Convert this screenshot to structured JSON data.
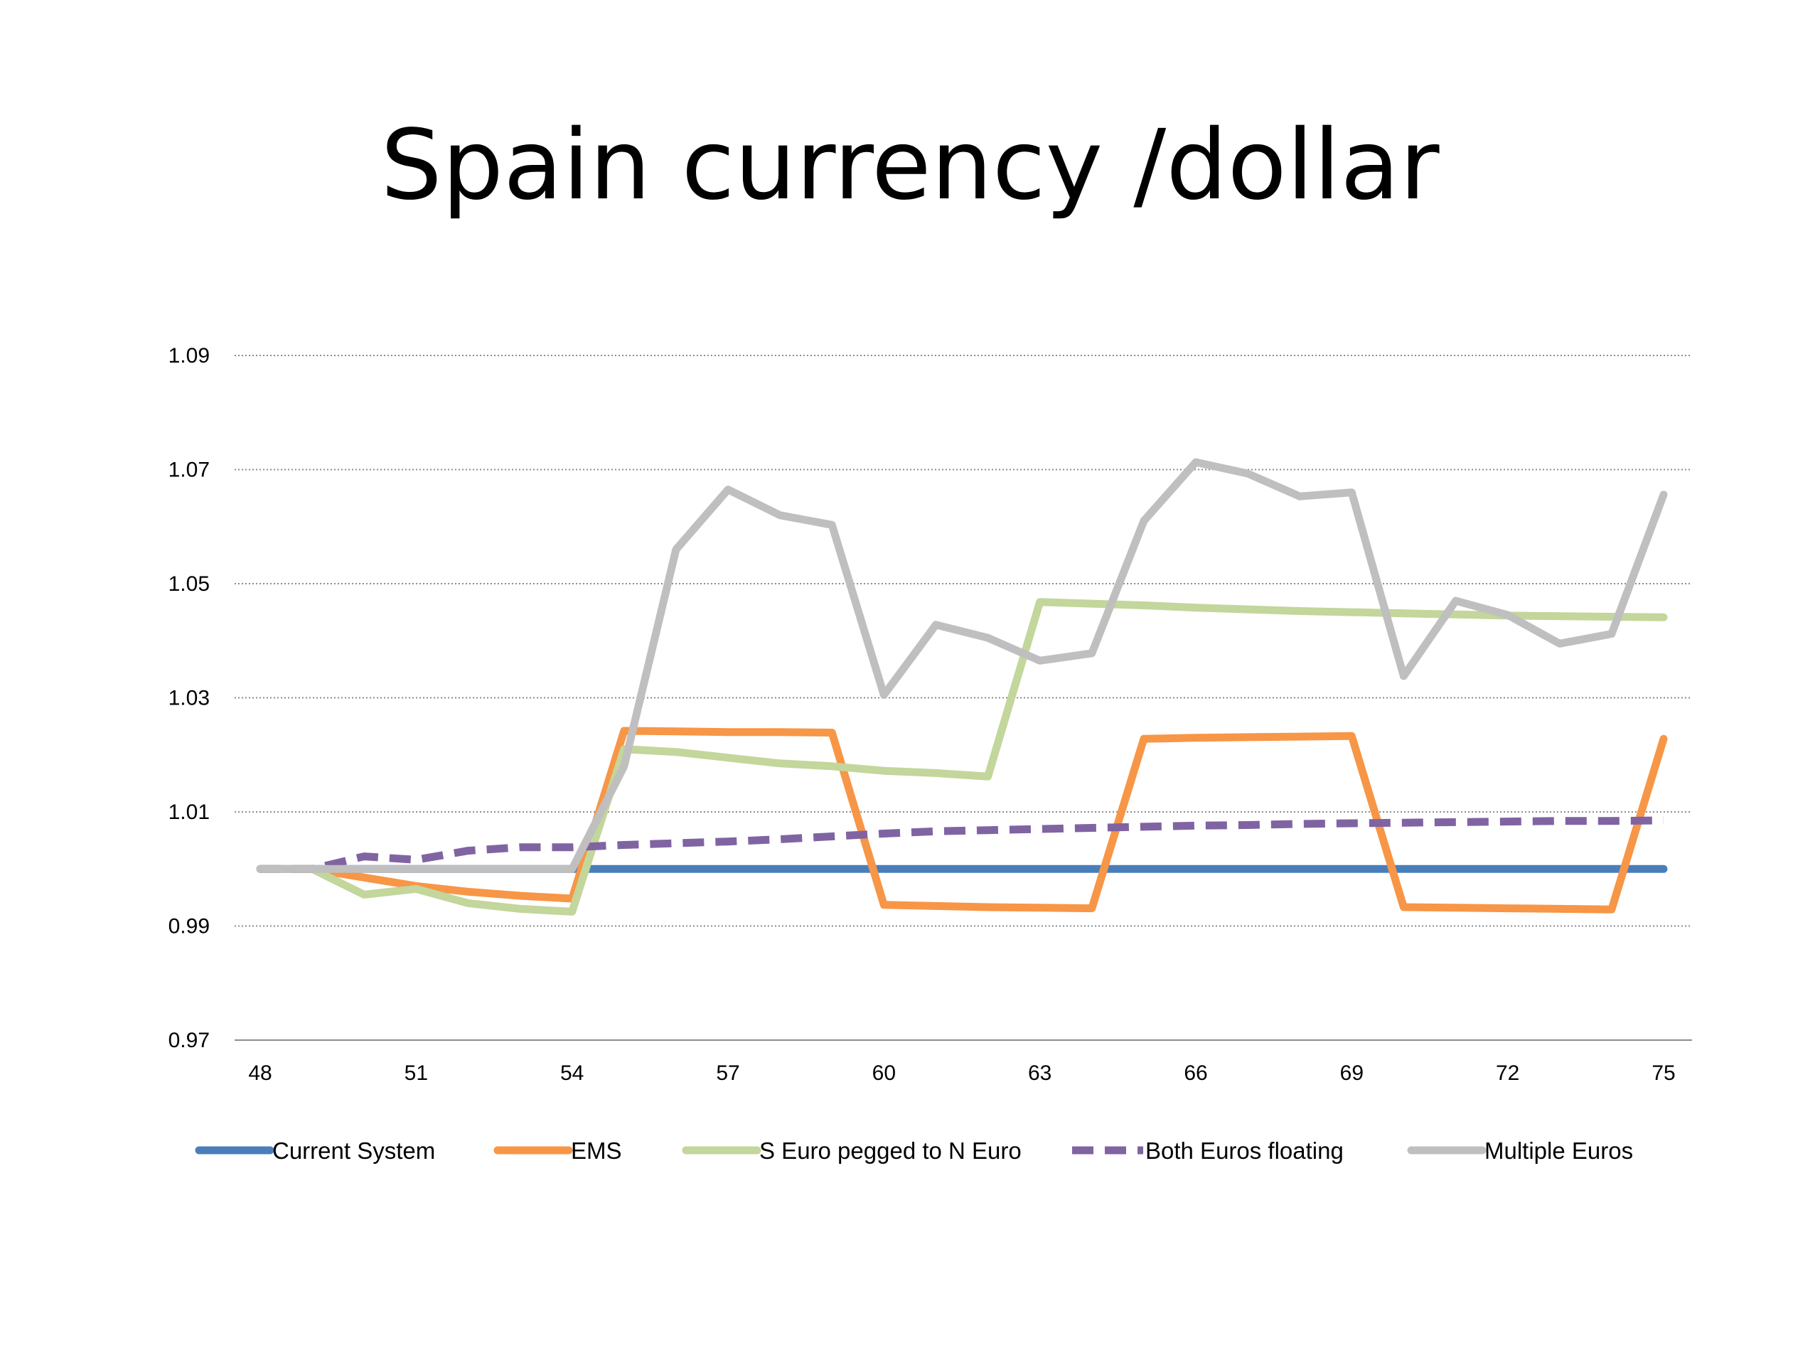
{
  "title": "Spain currency /dollar",
  "chart_data": {
    "type": "line",
    "title": "Spain currency /dollar",
    "xlabel": "",
    "ylabel": "",
    "x": [
      48,
      49,
      50,
      51,
      52,
      53,
      54,
      55,
      56,
      57,
      58,
      59,
      60,
      61,
      62,
      63,
      64,
      65,
      66,
      67,
      68,
      69,
      70,
      71,
      72,
      73,
      74,
      75
    ],
    "x_ticks": [
      "48",
      "51",
      "54",
      "57",
      "60",
      "63",
      "66",
      "69",
      "72",
      "75"
    ],
    "y_ticks": [
      "0.97",
      "0.99",
      "1.01",
      "1.03",
      "1.05",
      "1.07",
      "1.09"
    ],
    "xlim": [
      48,
      75
    ],
    "ylim": [
      0.97,
      1.09
    ],
    "grid": "horizontal dotted",
    "legend_position": "bottom",
    "series": [
      {
        "name": "Current System",
        "color": "#4a7ebb",
        "dashed": false,
        "values": [
          1.0,
          1.0,
          1.0,
          1.0,
          1.0,
          1.0,
          1.0,
          1.0,
          1.0,
          1.0,
          1.0,
          1.0,
          1.0,
          1.0,
          1.0,
          1.0,
          1.0,
          1.0,
          1.0,
          1.0,
          1.0,
          1.0,
          1.0,
          1.0,
          1.0,
          1.0,
          1.0,
          1.0
        ]
      },
      {
        "name": "EMS",
        "color": "#f79646",
        "dashed": false,
        "values": [
          1.0,
          1.0,
          0.9985,
          0.997,
          0.996,
          0.9953,
          0.9948,
          1.0242,
          1.0241,
          1.024,
          1.024,
          1.0239,
          0.9937,
          0.9935,
          0.9933,
          0.9932,
          0.9931,
          1.0228,
          1.023,
          1.0231,
          1.0232,
          1.0233,
          0.9933,
          0.9932,
          0.9931,
          0.993,
          0.9929,
          1.0228
        ]
      },
      {
        "name": "S Euro pegged to N Euro",
        "color": "#c3d69b",
        "dashed": false,
        "values": [
          1.0,
          1.0,
          0.9955,
          0.9965,
          0.994,
          0.993,
          0.9925,
          1.021,
          1.0205,
          1.0195,
          1.0185,
          1.018,
          1.0172,
          1.0168,
          1.0162,
          1.0468,
          1.0465,
          1.0462,
          1.0458,
          1.0455,
          1.0452,
          1.045,
          1.0448,
          1.0446,
          1.0444,
          1.0443,
          1.0442,
          1.0441
        ]
      },
      {
        "name": "Both Euros floating",
        "color": "#8064a2",
        "dashed": true,
        "values": [
          1.0,
          1.0,
          1.0022,
          1.0016,
          1.0032,
          1.0038,
          1.0038,
          1.0042,
          1.0045,
          1.0048,
          1.0052,
          1.0057,
          1.0062,
          1.0066,
          1.0068,
          1.007,
          1.0072,
          1.0074,
          1.0076,
          1.0077,
          1.0079,
          1.008,
          1.0081,
          1.0082,
          1.0083,
          1.0084,
          1.0084,
          1.0085
        ]
      },
      {
        "name": "Multiple Euros",
        "color": "#bfbfbf",
        "dashed": false,
        "values": [
          1.0,
          1.0,
          1.0,
          1.0,
          1.0,
          1.0,
          1.0,
          1.018,
          1.056,
          1.0665,
          1.062,
          1.0603,
          1.0305,
          1.0428,
          1.0405,
          1.0365,
          1.0378,
          1.061,
          1.0713,
          1.0693,
          1.0653,
          1.066,
          1.0338,
          1.047,
          1.0445,
          1.0395,
          1.0412,
          1.0656
        ]
      }
    ]
  }
}
